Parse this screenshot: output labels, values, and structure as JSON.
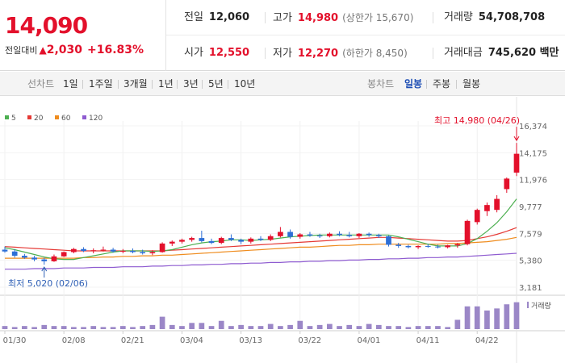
{
  "quote": {
    "price": "14,090",
    "change_label": "전일대비",
    "change_arrow": "▲",
    "change_amount": "2,030",
    "change_pct": "+16.83%",
    "prev_close_label": "전일",
    "prev_close": "12,060",
    "high_label": "고가",
    "high": "14,980",
    "upper_limit": "(상한가 15,670)",
    "volume_label": "거래량",
    "volume": "54,708,708",
    "open_label": "시가",
    "open": "12,550",
    "low_label": "저가",
    "low": "12,270",
    "lower_limit": "(하한가 8,450)",
    "amount_label": "거래대금",
    "amount": "745,620 백만"
  },
  "toolbar": {
    "line_label": "선차트",
    "periods": [
      "1일",
      "1주일",
      "3개월",
      "1년",
      "3년",
      "5년",
      "10년"
    ],
    "candle_label": "봉차트",
    "candles": [
      "일봉",
      "주봉",
      "월봉"
    ],
    "active_candle": "일봉"
  },
  "colors": {
    "up": "#e3102b",
    "down": "#2e6fd6",
    "ma5": "#4caf50",
    "ma20": "#e53935",
    "ma60": "#ef8c1e",
    "ma120": "#8e5bd0",
    "volume": "#9b87c7"
  },
  "chart_data": {
    "type": "candlestick",
    "legend": [
      {
        "name": "5",
        "color": "#4caf50"
      },
      {
        "name": "20",
        "color": "#e53935"
      },
      {
        "name": "60",
        "color": "#ef8c1e"
      },
      {
        "name": "120",
        "color": "#8e5bd0"
      }
    ],
    "y_ticks": [
      "16,374",
      "14,175",
      "11,976",
      "9,777",
      "7,579",
      "5,380",
      "3,181"
    ],
    "ylim": [
      3181,
      16374
    ],
    "x_ticks": [
      "01/30",
      "02/08",
      "02/21",
      "03/04",
      "03/13",
      "03/22",
      "04/01",
      "04/11",
      "04/22"
    ],
    "x_tick_index": [
      0,
      6,
      12,
      18,
      24,
      30,
      36,
      42,
      48
    ],
    "max_annotation": "최고 14,980 (04/26)",
    "min_annotation": "최저 5,020 (02/06)",
    "max_index": 52,
    "min_index": 4,
    "volume_label": "거래량",
    "candles": [
      {
        "o": 6250,
        "h": 6500,
        "l": 6000,
        "c": 6100
      },
      {
        "o": 6100,
        "h": 6300,
        "l": 5600,
        "c": 5750
      },
      {
        "o": 5750,
        "h": 5900,
        "l": 5500,
        "c": 5600
      },
      {
        "o": 5600,
        "h": 5750,
        "l": 5300,
        "c": 5450
      },
      {
        "o": 5450,
        "h": 5600,
        "l": 5020,
        "c": 5300
      },
      {
        "o": 5300,
        "h": 5850,
        "l": 5250,
        "c": 5700
      },
      {
        "o": 5700,
        "h": 6100,
        "l": 5650,
        "c": 6050
      },
      {
        "o": 6050,
        "h": 6400,
        "l": 5950,
        "c": 6300
      },
      {
        "o": 6300,
        "h": 6450,
        "l": 6050,
        "c": 6150
      },
      {
        "o": 6150,
        "h": 6350,
        "l": 5950,
        "c": 6200
      },
      {
        "o": 6200,
        "h": 6500,
        "l": 6100,
        "c": 6250
      },
      {
        "o": 6250,
        "h": 6400,
        "l": 6000,
        "c": 6100
      },
      {
        "o": 6100,
        "h": 6300,
        "l": 5950,
        "c": 6150
      },
      {
        "o": 6150,
        "h": 6350,
        "l": 5950,
        "c": 6050
      },
      {
        "o": 6050,
        "h": 6250,
        "l": 5850,
        "c": 5950
      },
      {
        "o": 5950,
        "h": 6200,
        "l": 5800,
        "c": 6050
      },
      {
        "o": 6050,
        "h": 6850,
        "l": 6000,
        "c": 6750
      },
      {
        "o": 6750,
        "h": 7000,
        "l": 6550,
        "c": 6900
      },
      {
        "o": 6900,
        "h": 7150,
        "l": 6750,
        "c": 7050
      },
      {
        "o": 7050,
        "h": 7300,
        "l": 6900,
        "c": 7200
      },
      {
        "o": 7200,
        "h": 7800,
        "l": 6850,
        "c": 6950
      },
      {
        "o": 6950,
        "h": 7150,
        "l": 6700,
        "c": 6800
      },
      {
        "o": 6800,
        "h": 7300,
        "l": 6700,
        "c": 7200
      },
      {
        "o": 7200,
        "h": 7500,
        "l": 6950,
        "c": 7050
      },
      {
        "o": 7050,
        "h": 7150,
        "l": 6700,
        "c": 6900
      },
      {
        "o": 6900,
        "h": 7250,
        "l": 6750,
        "c": 7150
      },
      {
        "o": 7150,
        "h": 7350,
        "l": 6950,
        "c": 7050
      },
      {
        "o": 7050,
        "h": 7500,
        "l": 6950,
        "c": 7350
      },
      {
        "o": 7350,
        "h": 8100,
        "l": 7250,
        "c": 7700
      },
      {
        "o": 7700,
        "h": 7900,
        "l": 7150,
        "c": 7300
      },
      {
        "o": 7300,
        "h": 7600,
        "l": 7150,
        "c": 7500
      },
      {
        "o": 7500,
        "h": 7700,
        "l": 7300,
        "c": 7400
      },
      {
        "o": 7400,
        "h": 7550,
        "l": 7200,
        "c": 7350
      },
      {
        "o": 7350,
        "h": 7650,
        "l": 7250,
        "c": 7550
      },
      {
        "o": 7550,
        "h": 7750,
        "l": 7350,
        "c": 7450
      },
      {
        "o": 7450,
        "h": 7700,
        "l": 7250,
        "c": 7350
      },
      {
        "o": 7350,
        "h": 7600,
        "l": 7200,
        "c": 7550
      },
      {
        "o": 7550,
        "h": 7650,
        "l": 7300,
        "c": 7450
      },
      {
        "o": 7450,
        "h": 7550,
        "l": 7200,
        "c": 7350
      },
      {
        "o": 7350,
        "h": 7400,
        "l": 6500,
        "c": 6650
      },
      {
        "o": 6650,
        "h": 6800,
        "l": 6400,
        "c": 6550
      },
      {
        "o": 6550,
        "h": 6650,
        "l": 6350,
        "c": 6450
      },
      {
        "o": 6450,
        "h": 6600,
        "l": 6300,
        "c": 6550
      },
      {
        "o": 6550,
        "h": 6700,
        "l": 6400,
        "c": 6500
      },
      {
        "o": 6500,
        "h": 6650,
        "l": 6350,
        "c": 6450
      },
      {
        "o": 6450,
        "h": 6650,
        "l": 6350,
        "c": 6600
      },
      {
        "o": 6600,
        "h": 6800,
        "l": 6400,
        "c": 6700
      },
      {
        "o": 6700,
        "h": 8700,
        "l": 6600,
        "c": 8600
      },
      {
        "o": 8500,
        "h": 9600,
        "l": 8300,
        "c": 9500
      },
      {
        "o": 9400,
        "h": 10100,
        "l": 9000,
        "c": 9900
      },
      {
        "o": 9500,
        "h": 10700,
        "l": 9300,
        "c": 10400
      },
      {
        "o": 11200,
        "h": 12150,
        "l": 10900,
        "c": 12060
      },
      {
        "o": 12550,
        "h": 14980,
        "l": 12270,
        "c": 14090
      }
    ],
    "ma5": [
      6400,
      6250,
      6050,
      5850,
      5650,
      5500,
      5450,
      5450,
      5600,
      5750,
      5900,
      6050,
      6150,
      6150,
      6150,
      6100,
      6150,
      6250,
      6450,
      6650,
      6800,
      6900,
      6950,
      7050,
      7050,
      7000,
      7050,
      7100,
      7200,
      7300,
      7350,
      7400,
      7450,
      7450,
      7450,
      7450,
      7450,
      7450,
      7450,
      7450,
      7300,
      7100,
      6900,
      6700,
      6550,
      6550,
      6550,
      6750,
      7150,
      7750,
      8450,
      9350,
      10400
    ],
    "ma20": [
      6500,
      6450,
      6400,
      6350,
      6300,
      6250,
      6200,
      6150,
      6150,
      6150,
      6150,
      6150,
      6150,
      6150,
      6150,
      6150,
      6150,
      6200,
      6250,
      6300,
      6350,
      6400,
      6450,
      6500,
      6550,
      6600,
      6650,
      6700,
      6750,
      6800,
      6850,
      6900,
      6950,
      7000,
      7050,
      7100,
      7150,
      7200,
      7250,
      7250,
      7200,
      7150,
      7100,
      7050,
      7000,
      6950,
      6950,
      7000,
      7150,
      7300,
      7500,
      7750,
      8050
    ],
    "ma60": [
      5550,
      5550,
      5550,
      5550,
      5550,
      5550,
      5550,
      5550,
      5600,
      5600,
      5650,
      5650,
      5700,
      5700,
      5750,
      5750,
      5800,
      5800,
      5850,
      5900,
      5950,
      6000,
      6050,
      6100,
      6150,
      6200,
      6250,
      6300,
      6350,
      6400,
      6450,
      6450,
      6500,
      6550,
      6600,
      6600,
      6650,
      6650,
      6700,
      6700,
      6700,
      6700,
      6700,
      6700,
      6700,
      6750,
      6750,
      6800,
      6850,
      6900,
      7000,
      7100,
      7250
    ],
    "ma120": [
      4650,
      4650,
      4650,
      4700,
      4700,
      4700,
      4750,
      4750,
      4750,
      4800,
      4800,
      4800,
      4850,
      4850,
      4850,
      4900,
      4900,
      4950,
      4950,
      5000,
      5000,
      5050,
      5050,
      5100,
      5100,
      5150,
      5150,
      5200,
      5200,
      5250,
      5250,
      5300,
      5300,
      5350,
      5350,
      5400,
      5400,
      5450,
      5450,
      5500,
      5500,
      5550,
      5550,
      5600,
      5600,
      5650,
      5650,
      5700,
      5750,
      5800,
      5850,
      5900,
      5950
    ],
    "volume": [
      3,
      2,
      3,
      2,
      4,
      3,
      3,
      2,
      2,
      3,
      2,
      2,
      3,
      2,
      3,
      4,
      12,
      4,
      3,
      6,
      6,
      3,
      8,
      3,
      4,
      3,
      3,
      5,
      3,
      4,
      8,
      3,
      4,
      5,
      3,
      4,
      3,
      5,
      4,
      3,
      3,
      2,
      3,
      3,
      3,
      2,
      9,
      22,
      22,
      18,
      20,
      24,
      26
    ]
  }
}
